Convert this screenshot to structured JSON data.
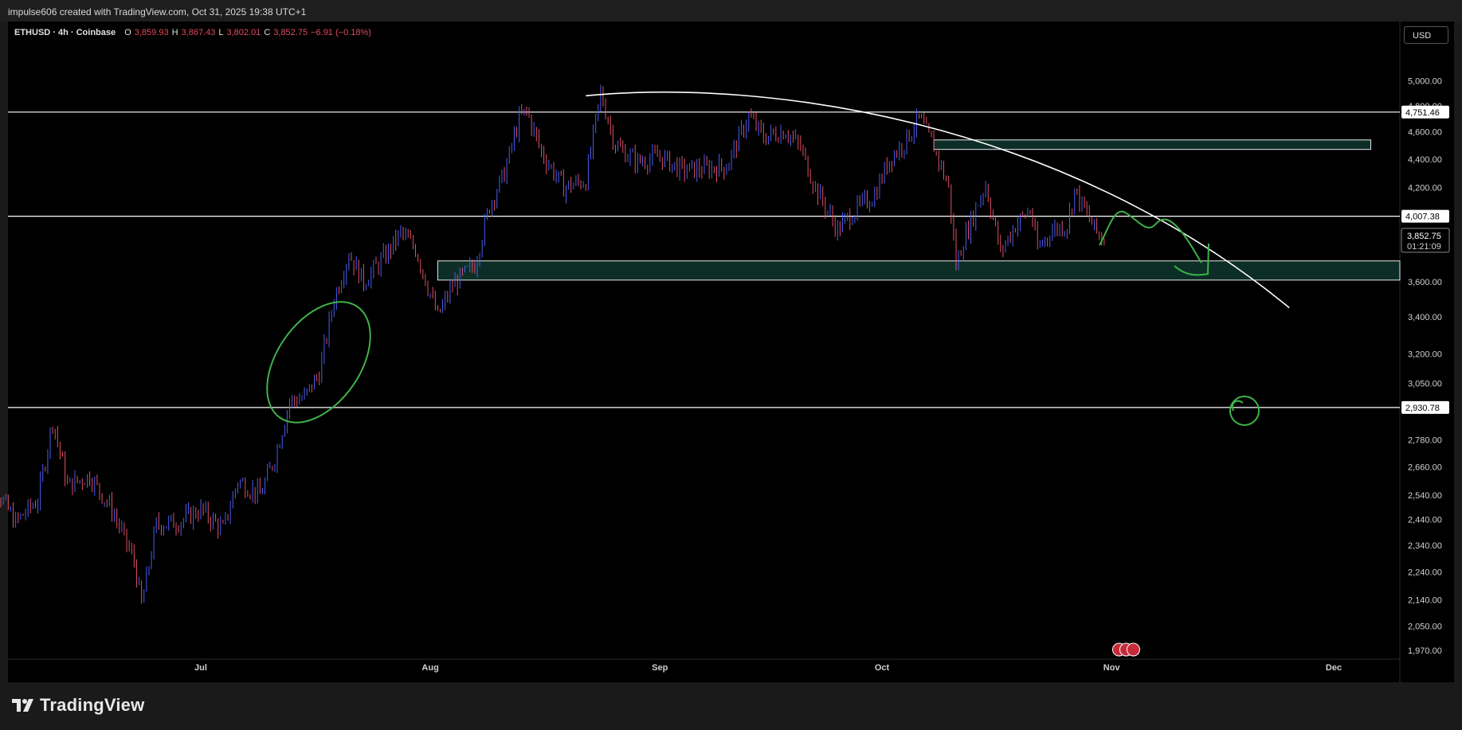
{
  "credit": "impulse606 created with TradingView.com, Oct 31, 2025 19:38 UTC+1",
  "brand": "TradingView",
  "header": {
    "symbol": "ETHUSD · 4h · Coinbase",
    "open_label": "O",
    "open": "3,859.93",
    "high_label": "H",
    "high": "3,867.43",
    "low_label": "L",
    "low": "3,802.01",
    "close_label": "C",
    "close": "3,852.75",
    "change": "−6.91 (−0.18%)"
  },
  "currency": "USD",
  "colors": {
    "up": "#4a5df0",
    "down": "#e05064",
    "zone": "#0c2e27",
    "zone_border": "#e8e8e8",
    "drawing": "#3fb24a",
    "line": "#ffffff",
    "text": "#d0d0d0"
  },
  "chart_data": {
    "type": "candlestick",
    "y_axis": {
      "ticks": [
        "5,000.00",
        "4,800.00",
        "4,600.00",
        "4,400.00",
        "4,200.00",
        "3,600.00",
        "3,400.00",
        "3,200.00",
        "3,050.00",
        "2,780.00",
        "2,660.00",
        "2,540.00",
        "2,440.00",
        "2,340.00",
        "2,240.00",
        "2,140.00",
        "2,050.00",
        "1,970.00"
      ],
      "tick_values": [
        5000,
        4800,
        4600,
        4400,
        4200,
        3600,
        3400,
        3200,
        3050,
        2780,
        2660,
        2540,
        2440,
        2340,
        2240,
        2140,
        2050,
        1970
      ],
      "log_scale": true
    },
    "x_axis": {
      "ticks": [
        "Jul",
        "Aug",
        "Sep",
        "Oct",
        "Nov",
        "Dec"
      ],
      "tick_dates": [
        "2025-07-01",
        "2025-08-01",
        "2025-09-01",
        "2025-10-01",
        "2025-11-01",
        "2025-12-01"
      ],
      "range": [
        "2025-06-01",
        "2025-12-10"
      ]
    },
    "price_labels": [
      {
        "text": "4,751.46",
        "value": 4751.46,
        "style": "line"
      },
      {
        "text": "4,007.38",
        "value": 4007.38,
        "style": "line"
      },
      {
        "text": "3,852.75",
        "value": 3852.75,
        "style": "current",
        "timer": "01:21:09"
      },
      {
        "text": "2,930.78",
        "value": 2930.78,
        "style": "line"
      }
    ],
    "horizontal_lines": [
      4751.46,
      4007.38,
      2930.78
    ],
    "zones": [
      {
        "from": "2025-10-08",
        "to": "2025-12-06",
        "low": 4470,
        "high": 4540
      },
      {
        "from": "2025-08-02",
        "to": "2025-12-10",
        "low": 3610,
        "high": 3725
      }
    ],
    "price_path": [
      {
        "date": "2025-06-01",
        "close": 2620
      },
      {
        "date": "2025-06-03",
        "close": 2580
      },
      {
        "date": "2025-06-06",
        "close": 2430
      },
      {
        "date": "2025-06-09",
        "close": 2520
      },
      {
        "date": "2025-06-11",
        "close": 2870
      },
      {
        "date": "2025-06-13",
        "close": 2580
      },
      {
        "date": "2025-06-16",
        "close": 2620
      },
      {
        "date": "2025-06-19",
        "close": 2480
      },
      {
        "date": "2025-06-22",
        "close": 2280
      },
      {
        "date": "2025-06-23",
        "close": 2120
      },
      {
        "date": "2025-06-25",
        "close": 2420
      },
      {
        "date": "2025-06-28",
        "close": 2430
      },
      {
        "date": "2025-07-01",
        "close": 2480
      },
      {
        "date": "2025-07-04",
        "close": 2400
      },
      {
        "date": "2025-07-06",
        "close": 2600
      },
      {
        "date": "2025-07-09",
        "close": 2540
      },
      {
        "date": "2025-07-11",
        "close": 2700
      },
      {
        "date": "2025-07-13",
        "close": 2960
      },
      {
        "date": "2025-07-15",
        "close": 2980
      },
      {
        "date": "2025-07-17",
        "close": 3100
      },
      {
        "date": "2025-07-19",
        "close": 3500
      },
      {
        "date": "2025-07-21",
        "close": 3770
      },
      {
        "date": "2025-07-23",
        "close": 3600
      },
      {
        "date": "2025-07-26",
        "close": 3760
      },
      {
        "date": "2025-07-28",
        "close": 3900
      },
      {
        "date": "2025-07-30",
        "close": 3800
      },
      {
        "date": "2025-08-02",
        "close": 3400
      },
      {
        "date": "2025-08-04",
        "close": 3580
      },
      {
        "date": "2025-08-07",
        "close": 3700
      },
      {
        "date": "2025-08-09",
        "close": 4080
      },
      {
        "date": "2025-08-11",
        "close": 4300
      },
      {
        "date": "2025-08-13",
        "close": 4700
      },
      {
        "date": "2025-08-14",
        "close": 4760
      },
      {
        "date": "2025-08-16",
        "close": 4450
      },
      {
        "date": "2025-08-19",
        "close": 4200
      },
      {
        "date": "2025-08-22",
        "close": 4250
      },
      {
        "date": "2025-08-24",
        "close": 4900
      },
      {
        "date": "2025-08-26",
        "close": 4500
      },
      {
        "date": "2025-08-29",
        "close": 4380
      },
      {
        "date": "2025-09-01",
        "close": 4420
      },
      {
        "date": "2025-09-04",
        "close": 4320
      },
      {
        "date": "2025-09-07",
        "close": 4330
      },
      {
        "date": "2025-09-10",
        "close": 4350
      },
      {
        "date": "2025-09-13",
        "close": 4720
      },
      {
        "date": "2025-09-15",
        "close": 4560
      },
      {
        "date": "2025-09-18",
        "close": 4610
      },
      {
        "date": "2025-09-20",
        "close": 4480
      },
      {
        "date": "2025-09-22",
        "close": 4200
      },
      {
        "date": "2025-09-25",
        "close": 3920
      },
      {
        "date": "2025-09-27",
        "close": 4030
      },
      {
        "date": "2025-09-30",
        "close": 4150
      },
      {
        "date": "2025-10-02",
        "close": 4400
      },
      {
        "date": "2025-10-04",
        "close": 4520
      },
      {
        "date": "2025-10-06",
        "close": 4700
      },
      {
        "date": "2025-10-08",
        "close": 4490
      },
      {
        "date": "2025-10-10",
        "close": 4200
      },
      {
        "date": "2025-10-11",
        "close": 3700
      },
      {
        "date": "2025-10-12",
        "close": 3850
      },
      {
        "date": "2025-10-14",
        "close": 4100
      },
      {
        "date": "2025-10-15",
        "close": 4220
      },
      {
        "date": "2025-10-17",
        "close": 3780
      },
      {
        "date": "2025-10-19",
        "close": 3950
      },
      {
        "date": "2025-10-21",
        "close": 4050
      },
      {
        "date": "2025-10-22",
        "close": 3800
      },
      {
        "date": "2025-10-24",
        "close": 3920
      },
      {
        "date": "2025-10-26",
        "close": 3950
      },
      {
        "date": "2025-10-27",
        "close": 4180
      },
      {
        "date": "2025-10-28",
        "close": 4080
      },
      {
        "date": "2025-10-30",
        "close": 3900
      },
      {
        "date": "2025-10-31",
        "close": 3852.75
      }
    ]
  }
}
